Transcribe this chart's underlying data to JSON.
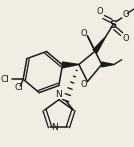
{
  "background_color": "#f2ede2",
  "line_color": "#1a1a1a",
  "lw": 1.1,
  "figsize": [
    1.34,
    1.47
  ],
  "dpi": 100,
  "xlim": [
    0,
    134
  ],
  "ylim": [
    0,
    147
  ]
}
